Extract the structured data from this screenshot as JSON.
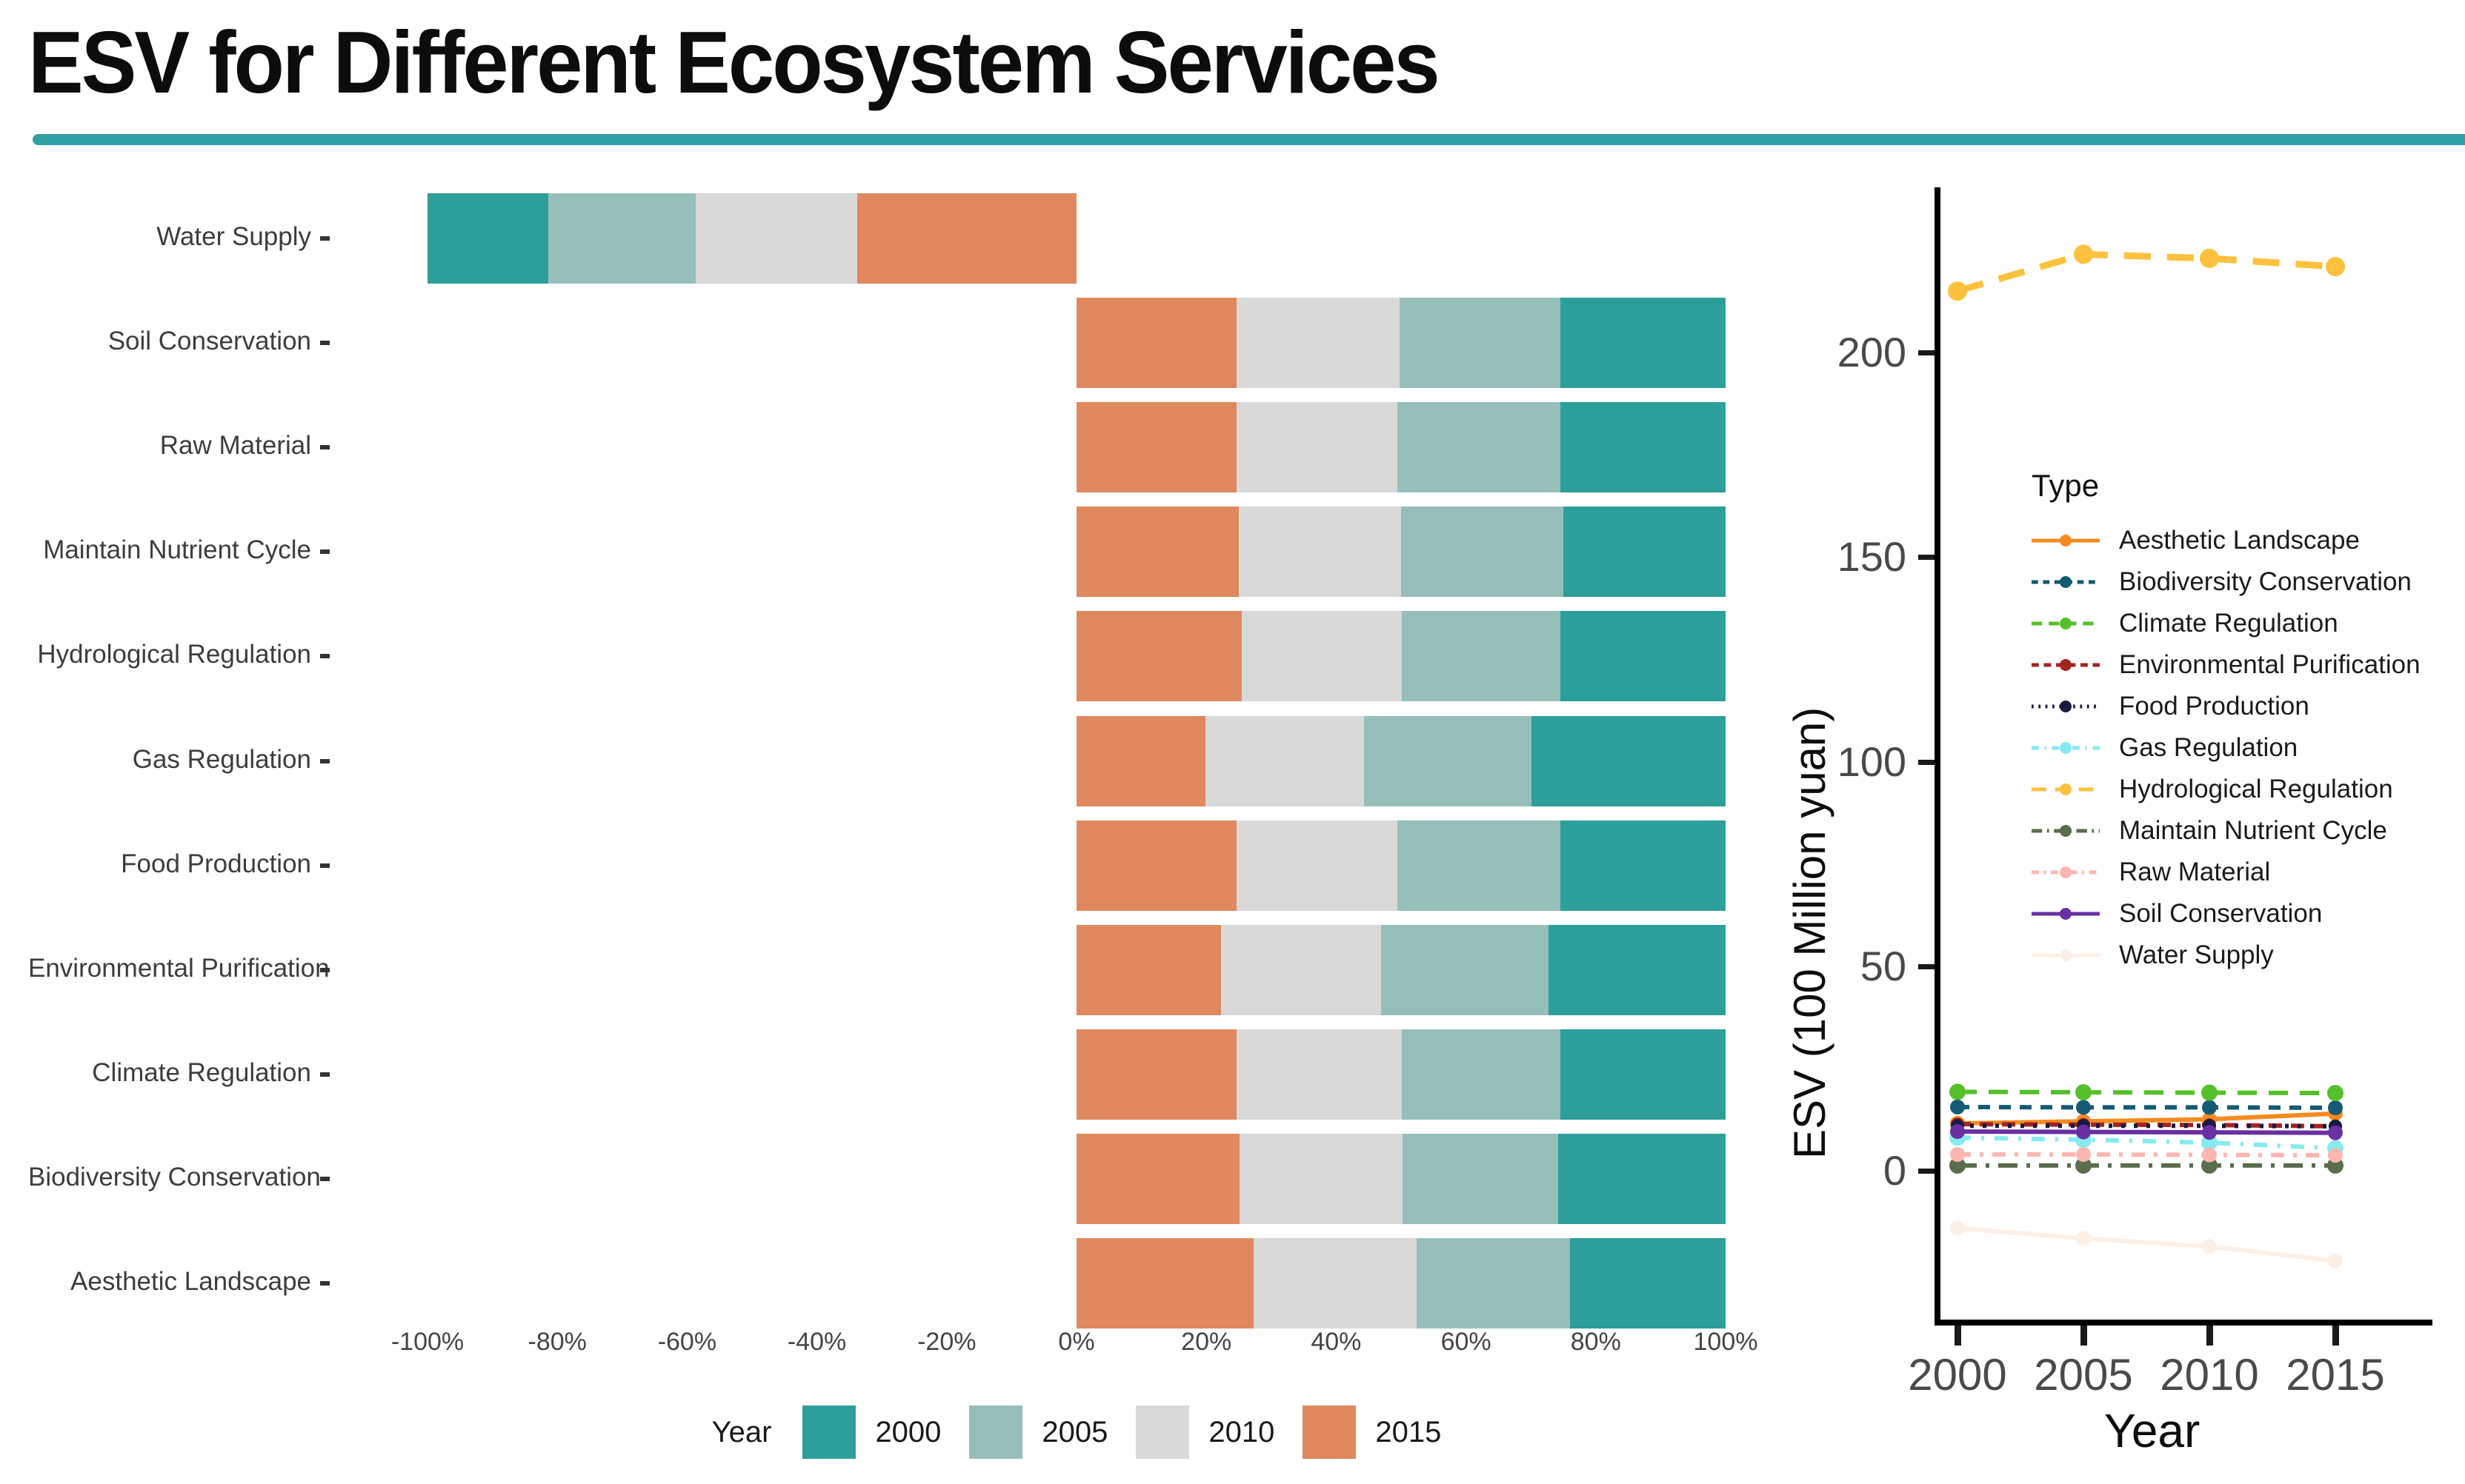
{
  "title": "ESV for Different Ecosystem Services",
  "accent_rule_color": "#2fa0a4",
  "bar_legend": {
    "title": "Year",
    "years": [
      "2000",
      "2005",
      "2010",
      "2015"
    ],
    "year_colors": {
      "2000": "#2d9f9b",
      "2005": "#96bfba",
      "2010": "#d9d9d9",
      "2015": "#e0895f"
    }
  },
  "line_axes": {
    "xlabel": "Year",
    "ylabel": "ESV (100 Million yuan)",
    "legend_title": "Type"
  },
  "chart_data": [
    {
      "type": "bar",
      "subtype": "horizontal-diverging-stacked-percent",
      "legend_title": "Year",
      "legend_position": "bottom",
      "years": [
        "2000",
        "2005",
        "2010",
        "2015"
      ],
      "year_colors": {
        "2000": "#2d9f9b",
        "2005": "#96bfba",
        "2010": "#d9d9d9",
        "2015": "#e0895f"
      },
      "xlim": [
        -100,
        100
      ],
      "x_ticks": [
        "-100%",
        "-80%",
        "-60%",
        "-40%",
        "-20%",
        "0%",
        "20%",
        "40%",
        "60%",
        "80%",
        "100%"
      ],
      "categories": [
        "Water Supply",
        "Soil Conservation",
        "Raw Material",
        "Maintain Nutrient Cycle",
        "Hydrological Regulation",
        "Gas Regulation",
        "Food Production",
        "Environmental Purification",
        "Climate Regulation",
        "Biodiversity Conservation",
        "Aesthetic Landscape"
      ],
      "series_pct": {
        "Water Supply": [
          -18.6,
          -22.7,
          -24.9,
          -33.8
        ],
        "Soil Conservation": [
          25.5,
          24.7,
          25.1,
          24.7
        ],
        "Raw Material": [
          25.5,
          25.1,
          24.7,
          24.7
        ],
        "Maintain Nutrient Cycle": [
          25.0,
          25.0,
          25.0,
          25.0
        ],
        "Hydrological Regulation": [
          25.5,
          24.4,
          24.7,
          25.4
        ],
        "Gas Regulation": [
          29.9,
          25.8,
          24.4,
          19.9
        ],
        "Food Production": [
          25.5,
          25.1,
          24.7,
          24.7
        ],
        "Environmental Purification": [
          27.3,
          25.8,
          24.7,
          22.2
        ],
        "Climate Regulation": [
          25.5,
          24.4,
          25.5,
          24.6
        ],
        "Biodiversity Conservation": [
          25.8,
          24.0,
          25.1,
          25.1
        ],
        "Aesthetic Landscape": [
          24.0,
          23.6,
          25.1,
          27.3
        ]
      }
    },
    {
      "type": "line",
      "xlabel": "Year",
      "ylabel": "ESV (100 Million yuan)",
      "legend_title": "Type",
      "legend_position": "inside-left",
      "x": [
        2000,
        2005,
        2010,
        2015
      ],
      "x_ticks": [
        "2000",
        "2005",
        "2010",
        "2015"
      ],
      "y_ticks": [
        0,
        50,
        100,
        150,
        200
      ],
      "ylim": [
        -36,
        240
      ],
      "grid": false,
      "series": [
        {
          "name": "Aesthetic Landscape",
          "color": "#f68b1f",
          "dash": "",
          "width": 6,
          "r": 10,
          "values": [
            11.6,
            12.1,
            12.6,
            14.0
          ]
        },
        {
          "name": "Biodiversity Conservation",
          "color": "#155a74",
          "dash": "16 12",
          "width": 6,
          "r": 10,
          "values": [
            15.6,
            15.5,
            15.5,
            15.4
          ]
        },
        {
          "name": "Climate Regulation",
          "color": "#55c02a",
          "dash": "26 16",
          "width": 6,
          "r": 11,
          "values": [
            19.3,
            19.2,
            19.1,
            19.0
          ]
        },
        {
          "name": "Environmental Purification",
          "color": "#a42420",
          "dash": "18 12",
          "width": 6,
          "r": 9,
          "values": [
            11.4,
            11.3,
            11.2,
            10.9
          ]
        },
        {
          "name": "Food Production",
          "color": "#191942",
          "dash": "5 12",
          "width": 6,
          "r": 9,
          "values": [
            11.0,
            11.0,
            11.0,
            10.9
          ]
        },
        {
          "name": "Gas Regulation",
          "color": "#86ebf0",
          "dash": "18 14 4 14",
          "width": 6,
          "r": 11,
          "values": [
            8.1,
            7.6,
            6.9,
            5.5
          ]
        },
        {
          "name": "Hydrological Regulation",
          "color": "#fdc13d",
          "dash": "36 22",
          "width": 9,
          "r": 13,
          "values": [
            215,
            224,
            223,
            221
          ]
        },
        {
          "name": "Maintain Nutrient Cycle",
          "color": "#5a6e4e",
          "dash": "26 12 5 12",
          "width": 6,
          "r": 11,
          "values": [
            1.3,
            1.3,
            1.3,
            1.3
          ]
        },
        {
          "name": "Raw Material",
          "color": "#fdb7b0",
          "dash": "18 12 5 12",
          "width": 6,
          "r": 10,
          "values": [
            4.0,
            4.0,
            3.9,
            3.8
          ]
        },
        {
          "name": "Soil Conservation",
          "color": "#6930a3",
          "dash": "",
          "width": 6,
          "r": 10,
          "values": [
            9.6,
            9.5,
            9.4,
            9.3
          ]
        },
        {
          "name": "Water Supply",
          "color": "#fcefe6",
          "dash": "",
          "width": 6,
          "r": 10,
          "values": [
            -14.0,
            -16.5,
            -18.5,
            -22.0
          ]
        }
      ]
    }
  ]
}
